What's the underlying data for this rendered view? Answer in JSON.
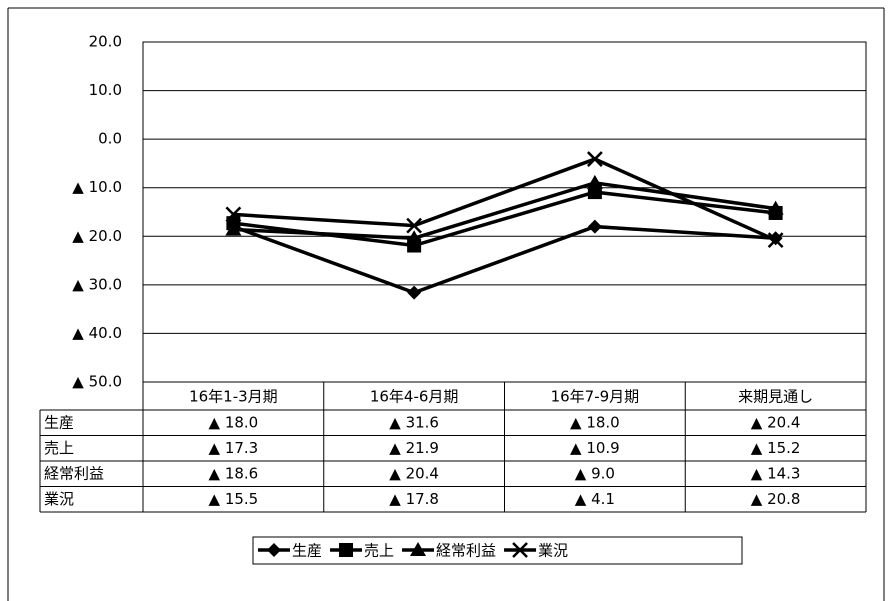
{
  "chart_data": {
    "type": "line",
    "categories": [
      "16年1-3月期",
      "16年4-6月期",
      "16年7-9月期",
      "来期見通し"
    ],
    "series": [
      {
        "name": "生産",
        "color": "#000000",
        "marker": "diamond",
        "values": [
          -18.0,
          -31.6,
          -18.0,
          -20.4
        ],
        "value_labels": [
          "▲ 18.0",
          "▲ 31.6",
          "▲ 18.0",
          "▲ 20.4"
        ]
      },
      {
        "name": "売上",
        "color": "#000000",
        "marker": "square",
        "values": [
          -17.3,
          -21.9,
          -10.9,
          -15.2
        ],
        "value_labels": [
          "▲ 17.3",
          "▲ 21.9",
          "▲ 10.9",
          "▲ 15.2"
        ]
      },
      {
        "name": "経常利益",
        "color": "#000000",
        "marker": "triangle",
        "values": [
          -18.6,
          -20.4,
          -9.0,
          -14.3
        ],
        "value_labels": [
          "▲ 18.6",
          "▲ 20.4",
          "▲ 9.0",
          "▲ 14.3"
        ]
      },
      {
        "name": "業況",
        "color": "#000000",
        "marker": "x",
        "values": [
          -15.5,
          -17.8,
          -4.1,
          -20.8
        ],
        "value_labels": [
          "▲ 15.5",
          "▲ 17.8",
          "▲ 4.1",
          "▲ 20.8"
        ]
      }
    ],
    "ylim": [
      -50,
      20
    ],
    "yticks": [
      {
        "value": 20,
        "label": "20.0"
      },
      {
        "value": 10,
        "label": "10.0"
      },
      {
        "value": 0,
        "label": "0.0"
      },
      {
        "value": -10,
        "label": "▲ 10.0"
      },
      {
        "value": -20,
        "label": "▲ 20.0"
      },
      {
        "value": -30,
        "label": "▲ 30.0"
      },
      {
        "value": -40,
        "label": "▲ 40.0"
      },
      {
        "value": -50,
        "label": "▲ 50.0"
      }
    ],
    "grid": true,
    "legend": "bottom"
  }
}
